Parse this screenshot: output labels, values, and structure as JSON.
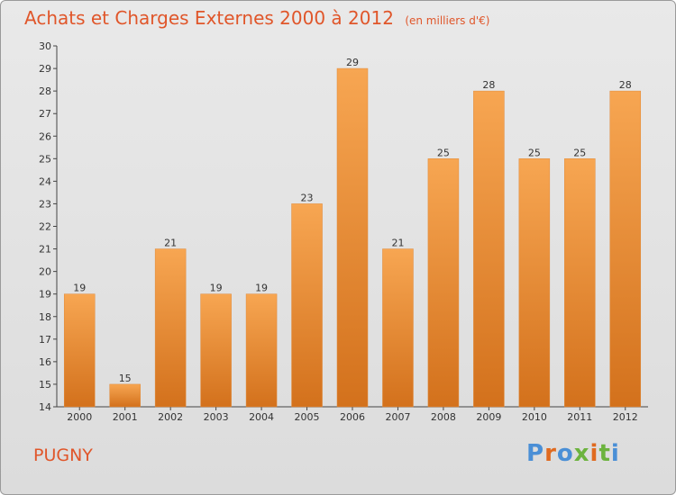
{
  "header": {
    "title": "Achats et Charges Externes 2000 à 2012",
    "unit": "(en milliers d'€)"
  },
  "footer": {
    "place": "PUGNY",
    "logo": "Proxiti"
  },
  "colors": {
    "title": "#e0562a",
    "bar_top": "#f7a652",
    "bar_bottom": "#d3711c",
    "logo_letters": [
      "#4a8fd6",
      "#e06a1f",
      "#4a8fd6",
      "#6cb33e",
      "#e06a1f",
      "#6cb33e",
      "#4a8fd6"
    ]
  },
  "chart_data": {
    "type": "bar",
    "categories": [
      "2000",
      "2001",
      "2002",
      "2003",
      "2004",
      "2005",
      "2006",
      "2007",
      "2008",
      "2009",
      "2010",
      "2011",
      "2012"
    ],
    "values": [
      19,
      15,
      21,
      19,
      19,
      23,
      29,
      21,
      25,
      28,
      25,
      25,
      28
    ],
    "title": "Achats et Charges Externes 2000 à 2012",
    "xlabel": "",
    "ylabel": "",
    "ylim": [
      14,
      30
    ],
    "yticks": [
      14,
      15,
      16,
      17,
      18,
      19,
      20,
      21,
      22,
      23,
      24,
      25,
      26,
      27,
      28,
      29,
      30
    ],
    "grid": false,
    "data_labels": true
  }
}
